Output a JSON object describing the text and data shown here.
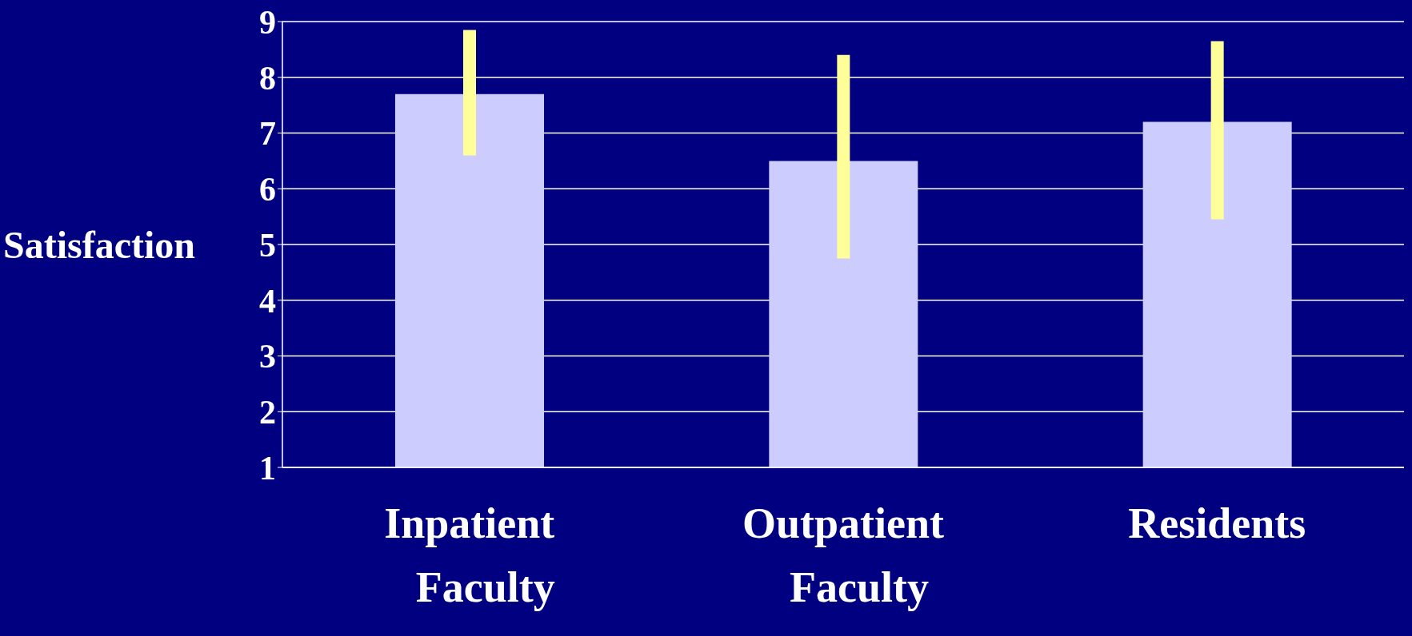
{
  "chart_data": {
    "type": "bar",
    "ylabel": "Satisfaction",
    "categories": [
      "Inpatient Faculty",
      "Outpatient Faculty",
      "Residents"
    ],
    "values": [
      7.7,
      6.5,
      7.2
    ],
    "errors": [
      [
        6.6,
        8.85
      ],
      [
        4.75,
        8.4
      ],
      [
        5.45,
        8.65
      ]
    ],
    "color": "#ccccff",
    "ylim": [
      1,
      9
    ],
    "yticks": [
      1,
      2,
      3,
      4,
      5,
      6,
      7,
      8,
      9
    ],
    "grid": "y"
  }
}
